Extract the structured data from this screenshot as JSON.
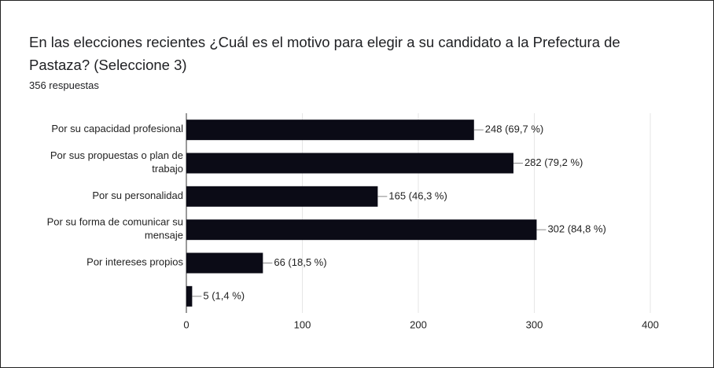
{
  "chart_data": {
    "type": "bar",
    "orientation": "horizontal",
    "title": "En las elecciones recientes ¿Cuál es el motivo para elegir a su candidato a la Prefectura de Pastaza? (Seleccione 3)",
    "subtitle": "356 respuestas",
    "categories": [
      "Por su capacidad profesional",
      "Por sus propuestas o plan de trabajo",
      "Por su personalidad",
      "Por su forma de comunicar su mensaje",
      "Por intereses propios",
      null
    ],
    "values": [
      248,
      282,
      165,
      302,
      66,
      5
    ],
    "value_labels": [
      "248 (69,7 %)",
      "282 (79,2 %)",
      "165 (46,3 %)",
      "302 (84,8 %)",
      "66 (18,5 %)",
      "5 (1,4 %)"
    ],
    "color": "#0b0b16",
    "xlim": [
      0,
      400
    ],
    "xticks": [
      0,
      100,
      200,
      300,
      400
    ],
    "grid": true
  }
}
